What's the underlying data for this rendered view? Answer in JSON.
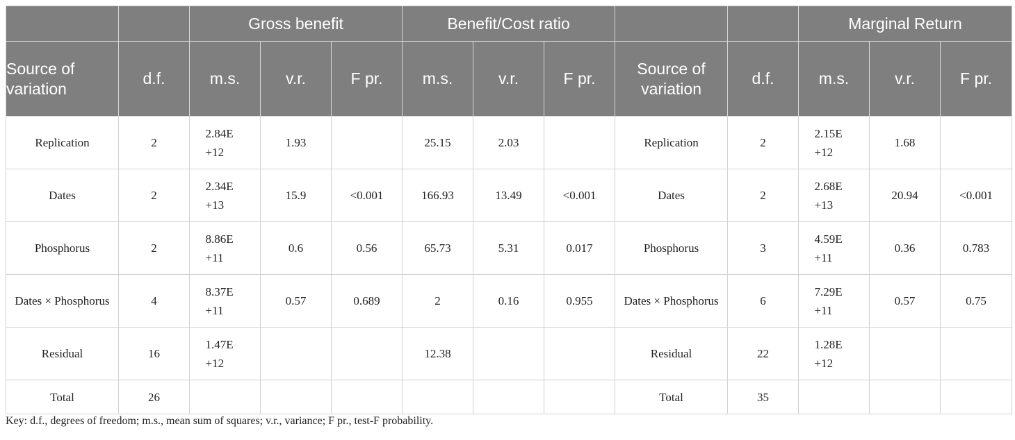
{
  "table": {
    "group_headers": [
      "",
      "",
      "Gross benefit",
      "Benefit/Cost ratio",
      "",
      "",
      "Marginal Return"
    ],
    "column_headers": {
      "source": "Source of variation",
      "df": "d.f.",
      "ms": "m.s.",
      "vr": "v.r.",
      "fpr": "F pr."
    },
    "rows": [
      {
        "source_left": "Replication",
        "df_left": "2",
        "gb": [
          "2.84E +12",
          "1.93",
          ""
        ],
        "bc": [
          "25.15",
          "2.03",
          ""
        ],
        "source_right": "Replication",
        "df_right": "2",
        "mr": [
          "2.15E +12",
          "1.68",
          ""
        ]
      },
      {
        "source_left": "Dates",
        "df_left": "2",
        "gb": [
          "2.34E +13",
          "15.9",
          "<0.001"
        ],
        "bc": [
          "166.93",
          "13.49",
          "<0.001"
        ],
        "source_right": "Dates",
        "df_right": "2",
        "mr": [
          "2.68E +13",
          "20.94",
          "<0.001"
        ]
      },
      {
        "source_left": "Phosphorus",
        "df_left": "2",
        "gb": [
          "8.86E +11",
          "0.6",
          "0.56"
        ],
        "bc": [
          "65.73",
          "5.31",
          "0.017"
        ],
        "source_right": "Phosphorus",
        "df_right": "3",
        "mr": [
          "4.59E +11",
          "0.36",
          "0.783"
        ]
      },
      {
        "source_left": "Dates × Phosphorus",
        "df_left": "4",
        "gb": [
          "8.37E +11",
          "0.57",
          "0.689"
        ],
        "bc": [
          "2",
          "0.16",
          "0.955"
        ],
        "source_right": "Dates × Phosphorus",
        "df_right": "6",
        "mr": [
          "7.29E +11",
          "0.57",
          "0.75"
        ]
      },
      {
        "source_left": "Residual",
        "df_left": "16",
        "gb": [
          "1.47E +12",
          "",
          ""
        ],
        "bc": [
          "12.38",
          "",
          ""
        ],
        "source_right": "Residual",
        "df_right": "22",
        "mr": [
          "1.28E +12",
          "",
          ""
        ]
      },
      {
        "source_left": "Total",
        "df_left": "26",
        "gb": [
          "",
          "",
          ""
        ],
        "bc": [
          "",
          "",
          ""
        ],
        "source_right": "Total",
        "df_right": "35",
        "mr": [
          "",
          "",
          ""
        ]
      }
    ]
  },
  "footnote": "Key: d.f., degrees of freedom; m.s., mean sum of squares; v.r., variance; F pr., test-F probability.",
  "colors": {
    "header_bg": "#7f7f7f",
    "header_text": "#ffffff",
    "grid": "#d2d2d2"
  }
}
